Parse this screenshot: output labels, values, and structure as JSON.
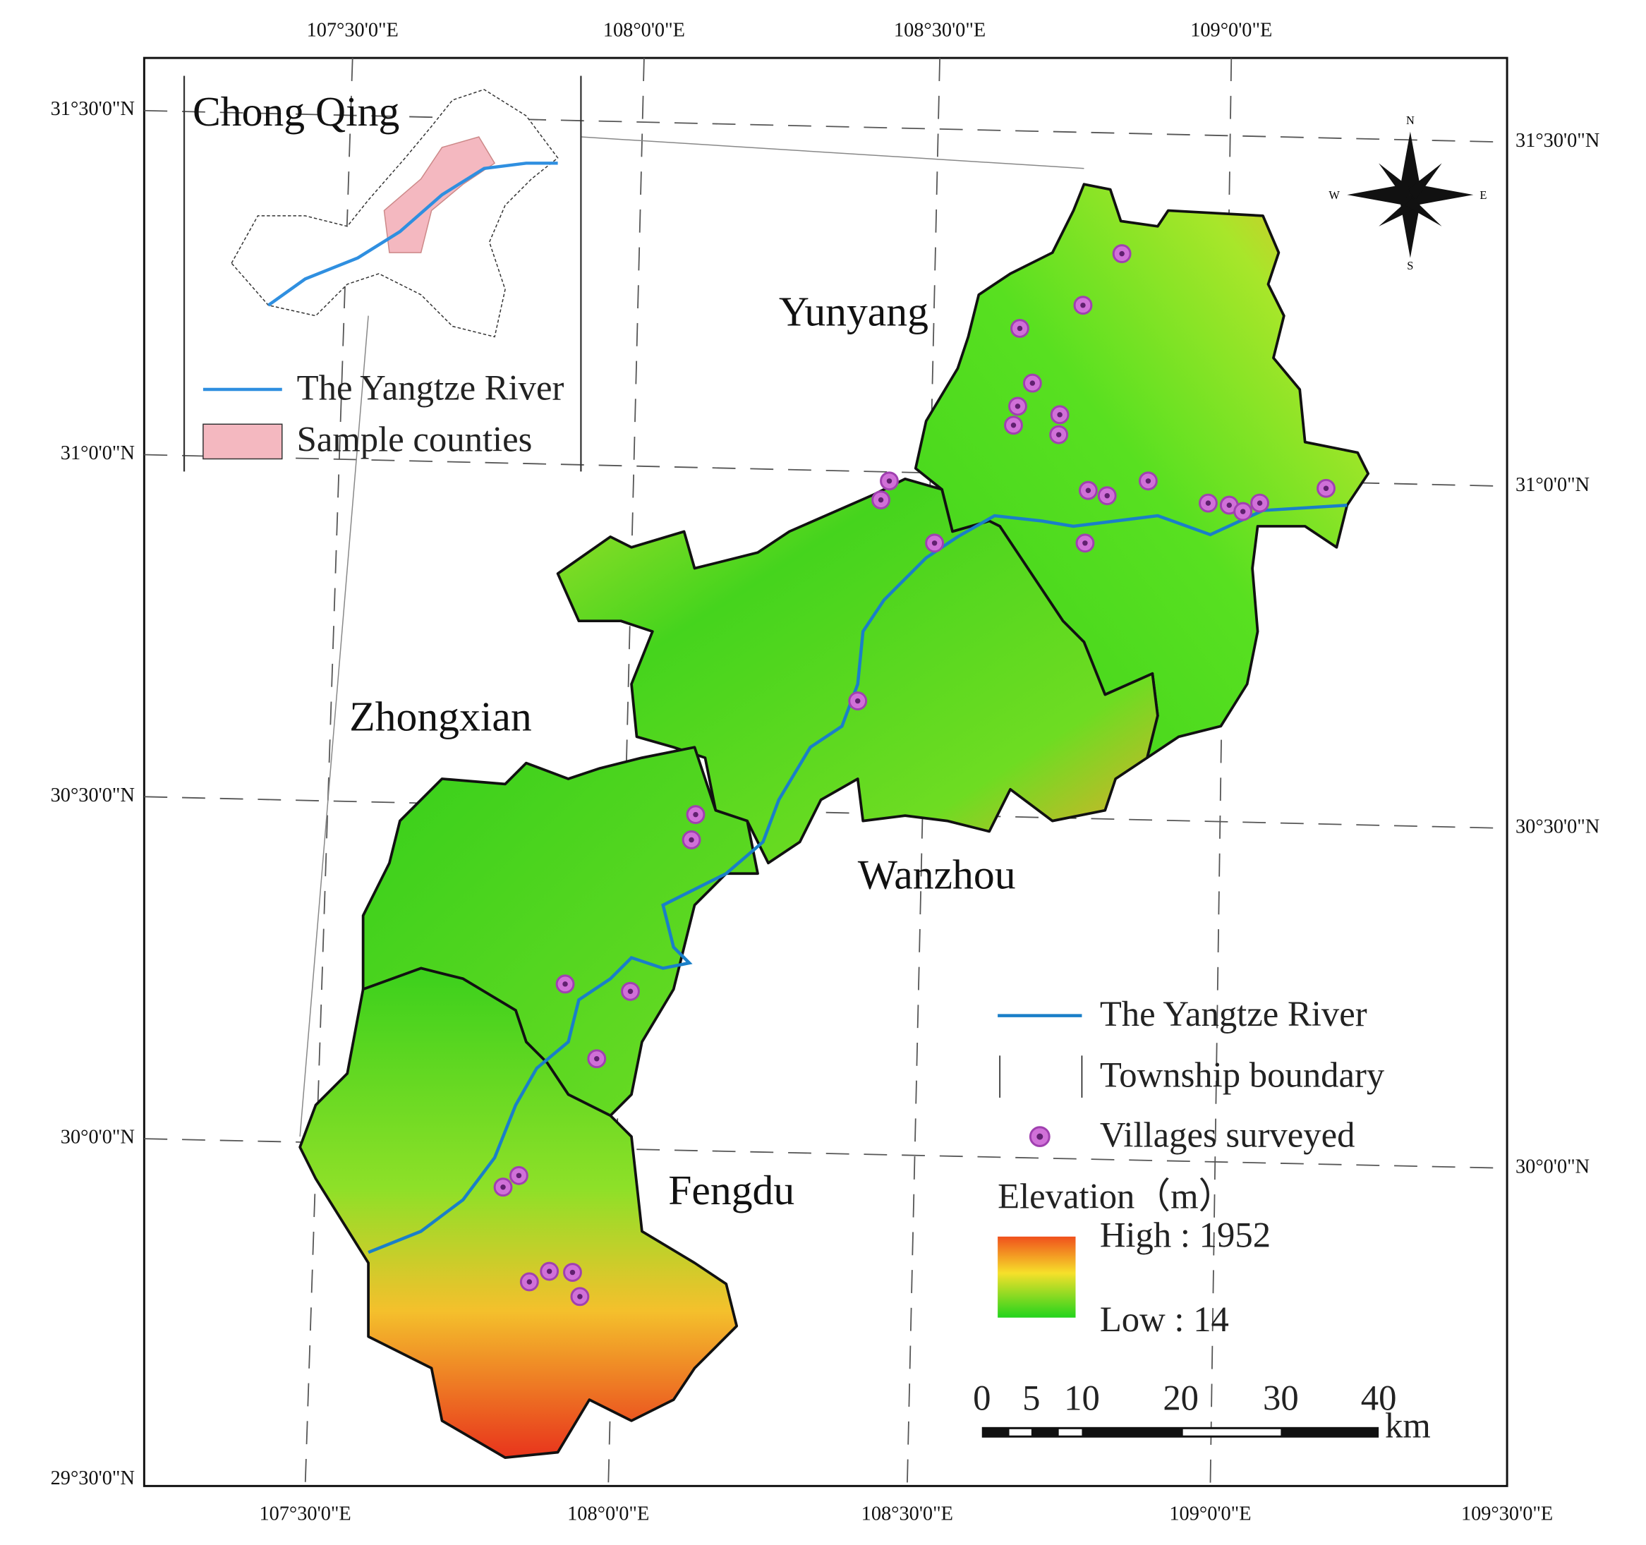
{
  "graticule": {
    "top": [
      "107°30'0\"E",
      "108°0'0\"E",
      "108°30'0\"E",
      "109°0'0\"E"
    ],
    "bottom": [
      "107°30'0\"E",
      "108°0'0\"E",
      "108°30'0\"E",
      "109°0'0\"E",
      "109°30'0\"E"
    ],
    "left": [
      "31°30'0\"N",
      "31°0'0\"N",
      "30°30'0\"N",
      "30°0'0\"N",
      "29°30'0\"N"
    ],
    "right": [
      "31°30'0\"N",
      "31°0'0\"N",
      "30°30'0\"N",
      "30°0'0\"N"
    ]
  },
  "inset": {
    "title": "Chong Qing",
    "legend": [
      "The Yangtze River",
      "Sample counties"
    ]
  },
  "counties": [
    "Yunyang",
    "Zhongxian",
    "Wanzhou",
    "Fengdu"
  ],
  "legend": {
    "items": [
      "The Yangtze River",
      "Township boundary",
      "Villages surveyed"
    ],
    "elevation_title": "Elevation（m）",
    "high": "High : 1952",
    "low": "Low : 14"
  },
  "scale_bar": {
    "labels": [
      "0",
      "5",
      "10",
      "20",
      "30",
      "40"
    ],
    "unit": "km"
  },
  "compass": {
    "labels": [
      "N",
      "S",
      "W",
      "E"
    ]
  }
}
